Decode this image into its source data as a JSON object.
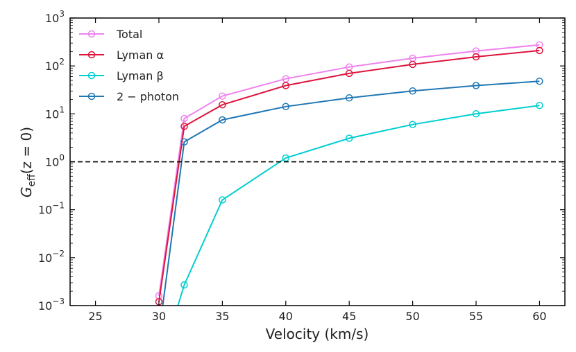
{
  "chart_data": {
    "type": "line",
    "xlabel": "Velocity (km/s)",
    "ylabel_main": "G",
    "ylabel_sub": "eff",
    "ylabel_suffix": "(z = 0)",
    "xlim": [
      23,
      62
    ],
    "ylim": [
      0.001,
      1000
    ],
    "yscale": "log",
    "xticks": [
      25,
      30,
      35,
      40,
      45,
      50,
      55,
      60
    ],
    "yticks": [
      {
        "value": 0.001,
        "base": "10",
        "exp": "−3"
      },
      {
        "value": 0.01,
        "base": "10",
        "exp": "−2"
      },
      {
        "value": 0.1,
        "base": "10",
        "exp": "−1"
      },
      {
        "value": 1,
        "base": "10",
        "exp": "0"
      },
      {
        "value": 10,
        "base": "10",
        "exp": "1"
      },
      {
        "value": 100,
        "base": "10",
        "exp": "2"
      },
      {
        "value": 1000,
        "base": "10",
        "exp": "3"
      }
    ],
    "reference_line": {
      "y": 1,
      "style": "dashed",
      "color": "#000000"
    },
    "legend_position": "top-left",
    "grid": false,
    "series": [
      {
        "name": "Total",
        "color": "#ee82ee",
        "x": [
          30,
          32,
          35,
          40,
          45,
          50,
          55,
          60
        ],
        "y": [
          0.0016,
          8.0,
          23.5,
          54,
          95,
          145,
          205,
          275
        ]
      },
      {
        "name": "Lyman α",
        "color": "#dc143c",
        "x": [
          30,
          32,
          35,
          40,
          45,
          50,
          55,
          60
        ],
        "y": [
          0.0012,
          5.5,
          15.5,
          39,
          70,
          108,
          155,
          210
        ]
      },
      {
        "name": "Lyman β",
        "color": "#00ced1",
        "x": [
          31.5,
          32,
          35,
          40,
          45,
          50,
          55,
          60
        ],
        "y": [
          0.001,
          0.0027,
          0.16,
          1.2,
          3.1,
          6.0,
          10.0,
          15.0
        ],
        "marker_from_index": 1
      },
      {
        "name": "2 − photon",
        "color": "#1f77b4",
        "x": [
          30.3,
          32,
          35,
          40,
          45,
          50,
          55,
          60
        ],
        "y": [
          0.001,
          2.6,
          7.5,
          14.2,
          21.5,
          30,
          39,
          48
        ],
        "marker_from_index": 1
      }
    ]
  }
}
